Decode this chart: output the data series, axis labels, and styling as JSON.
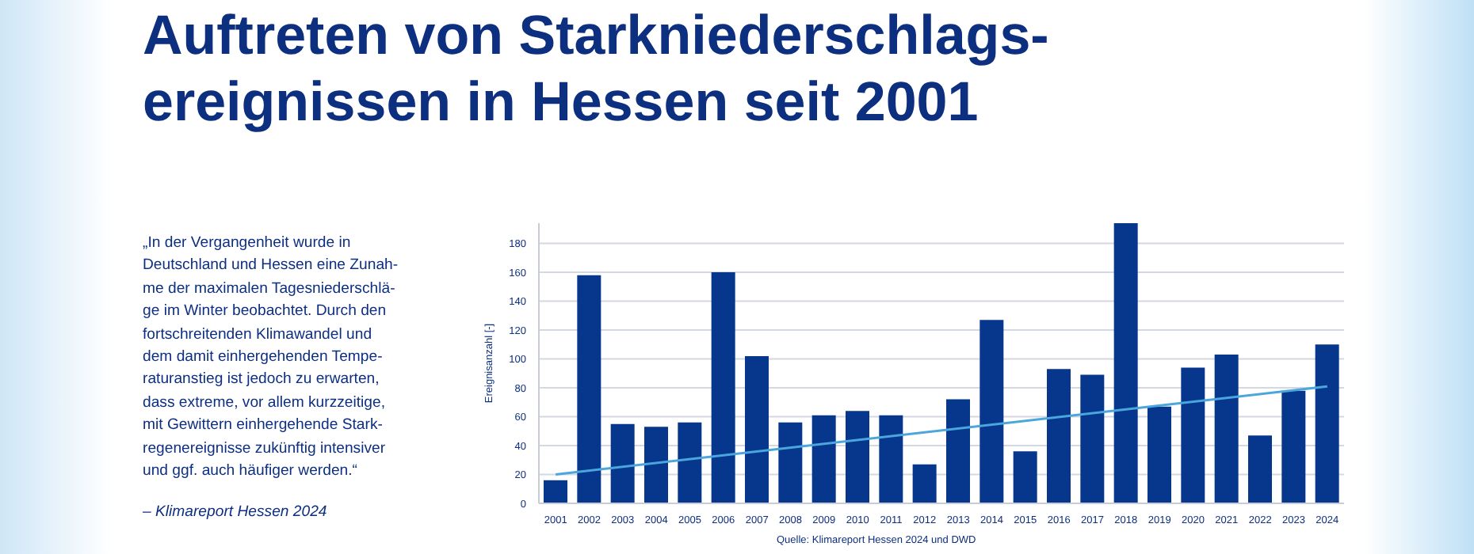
{
  "chart_data": {
    "type": "bar",
    "title": "Auftreten von Starkniederschlags-\nereignissen in Hessen seit 2001",
    "ylabel": "Ereignisanzahl [-]",
    "annotations": [
      "„In der Vergangenheit wurde in\nDeutschland und Hessen eine Zunah-\nme der maximalen Tagesniederschlä-\nge im Winter beobachtet. Durch den\nfortschreitenden Klimawandel und\ndem damit einhergehenden Tempe-\nraturanstieg ist jedoch zu erwarten,\ndass extreme, vor allem kurzzeitige,\nmit Gewittern einhergehende Stark-\nregenereignisse zukünftig intensiver\nund ggf. auch häufiger werden.“",
      "– Klimareport Hessen 2024",
      "Quelle: Klimareport Hessen 2024 und DWD"
    ],
    "categories": [
      "2001",
      "2002",
      "2003",
      "2004",
      "2005",
      "2006",
      "2007",
      "2008",
      "2009",
      "2010",
      "2011",
      "2012",
      "2013",
      "2014",
      "2015",
      "2016",
      "2017",
      "2018",
      "2019",
      "2020",
      "2021",
      "2022",
      "2023",
      "2024"
    ],
    "series": [
      {
        "color": "#07378c",
        "values": [
          16,
          158,
          55,
          53,
          56,
          160,
          102,
          56,
          61,
          64,
          61,
          27,
          72,
          127,
          36,
          93,
          89,
          194,
          67,
          94,
          103,
          47,
          78,
          110
        ]
      },
      {
        "type": "line",
        "color": "#4aa6dc",
        "values": [
          20,
          null,
          null,
          null,
          null,
          null,
          null,
          null,
          null,
          null,
          null,
          null,
          null,
          null,
          null,
          null,
          null,
          null,
          null,
          null,
          null,
          null,
          null,
          81
        ]
      }
    ],
    "ylim": [
      0,
      194
    ],
    "yticks": [
      0,
      20,
      40,
      60,
      80,
      100,
      120,
      140,
      160,
      180
    ],
    "grid": "y"
  }
}
